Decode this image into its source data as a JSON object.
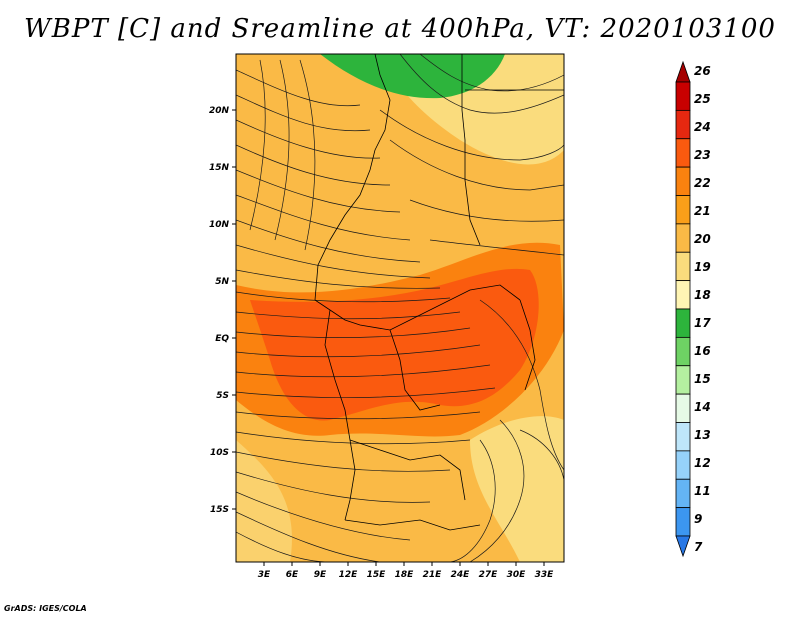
{
  "title": "WBPT [C] and Sreamline at 400hPa, VT: 2020103100",
  "credit": "GrADS: IGES/COLA",
  "lat_ticks": [
    "20N",
    "15N",
    "10N",
    "5N",
    "EQ",
    "5S",
    "10S",
    "15S"
  ],
  "lon_ticks": [
    "3E",
    "6E",
    "9E",
    "12E",
    "15E",
    "18E",
    "21E",
    "24E",
    "27E",
    "30E",
    "33E"
  ],
  "colorbar": {
    "levels": [
      "26",
      "25",
      "24",
      "23",
      "22",
      "21",
      "20",
      "19",
      "18",
      "17",
      "16",
      "15",
      "14",
      "13",
      "12",
      "11",
      "9",
      "7"
    ],
    "colors": [
      "#a50000",
      "#c80000",
      "#e62810",
      "#fa5a0f",
      "#fa820f",
      "#fa9f19",
      "#faba46",
      "#fadc7d",
      "#fff5b4",
      "#2db43c",
      "#6ed264",
      "#b4f0a0",
      "#e6fae6",
      "#bee6fa",
      "#96d2fa",
      "#64b4f5",
      "#3c96f0",
      "#2878e6"
    ]
  },
  "map_fill": {
    "base": "#faba46",
    "warm_band": "#fa820f",
    "hot_core": "#fa5a0f",
    "cool_zone": "#fadc7d",
    "green_zone": "#2db43c"
  }
}
